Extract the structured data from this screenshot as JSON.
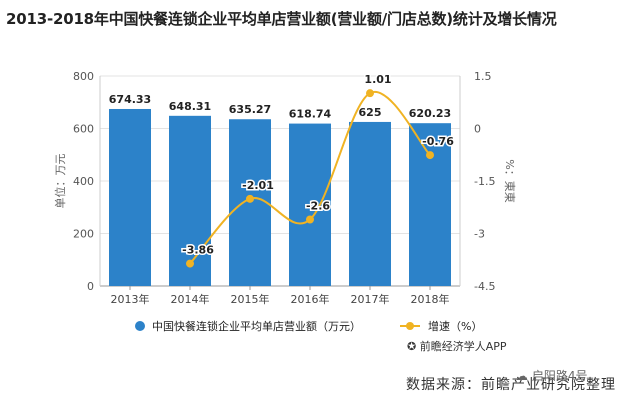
{
  "title": "2013-2018年中国快餐连锁企业平均单店营业额(营业额/门店总数)统计及增长情况",
  "chart_data": {
    "type": "bar",
    "categories": [
      "2013年",
      "2014年",
      "2015年",
      "2016年",
      "2017年",
      "2018年"
    ],
    "series": [
      {
        "name": "中国快餐连锁企业平均单店营业额（万元）",
        "type": "bar",
        "axis": "left",
        "values": [
          674.33,
          648.31,
          635.27,
          618.74,
          625,
          620.23
        ],
        "labels": [
          "674.33",
          "648.31",
          "635.27",
          "618.74",
          "625",
          "620.23"
        ],
        "color": "#2c82c9"
      },
      {
        "name": "增速（%）",
        "type": "line",
        "axis": "right",
        "values": [
          null,
          -3.86,
          -2.01,
          -2.6,
          1.01,
          -0.76
        ],
        "labels": [
          "",
          "-3.86",
          "-2.01",
          "-2.6",
          "1.01",
          "-0.76"
        ],
        "color": "#f0b323"
      }
    ],
    "ylabel": "单位：万元",
    "ylabel_right": "%：東東",
    "ylim": [
      0,
      800
    ],
    "yticks": [
      "0",
      "200",
      "400",
      "600",
      "800"
    ],
    "ylim_right": [
      -4.5,
      1.5
    ],
    "yticks_right": [
      "-4.5",
      "-3",
      "-1.5",
      "0",
      "1.5"
    ],
    "grid": true,
    "legend": "bottom"
  },
  "footer": {
    "app": "前瞻经济学人APP",
    "source": "数据来源：前瞻产业研究院整理",
    "badge": "启阳路4号"
  },
  "colors": {
    "bar": "#2c82c9",
    "line": "#f0b323"
  }
}
